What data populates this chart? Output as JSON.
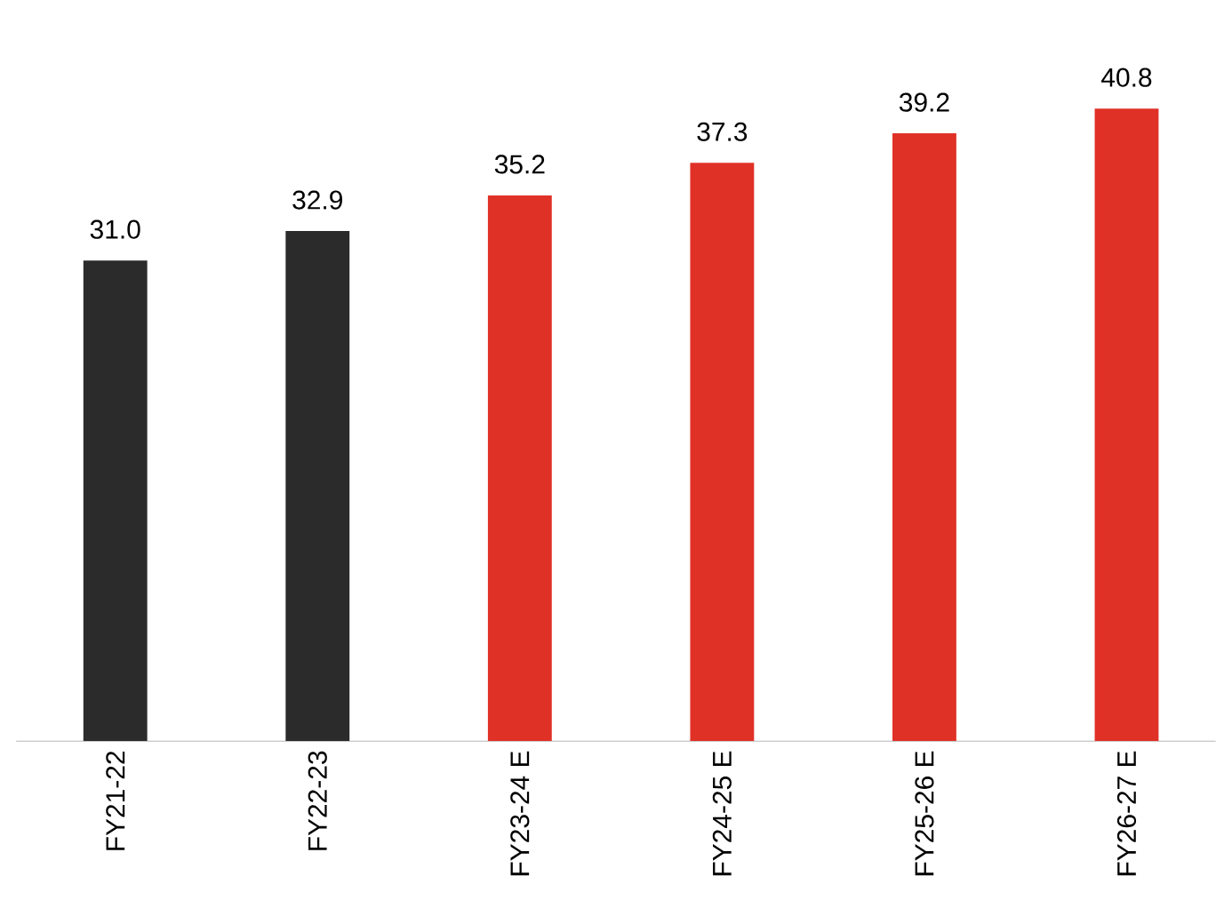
{
  "chart_data": {
    "type": "bar",
    "categories": [
      "FY21-22",
      "FY22-23",
      "FY23-24 E",
      "FY24-25 E",
      "FY25-26 E",
      "FY26-27 E"
    ],
    "values": [
      31.0,
      32.9,
      35.2,
      37.3,
      39.2,
      40.8
    ],
    "colors": [
      "#2b2b2b",
      "#2b2b2b",
      "#e03127",
      "#e03127",
      "#e03127",
      "#e03127"
    ],
    "value_labels": [
      "31.0",
      "32.9",
      "35.2",
      "37.3",
      "39.2",
      "40.8"
    ],
    "tick_labels": "x"
  }
}
